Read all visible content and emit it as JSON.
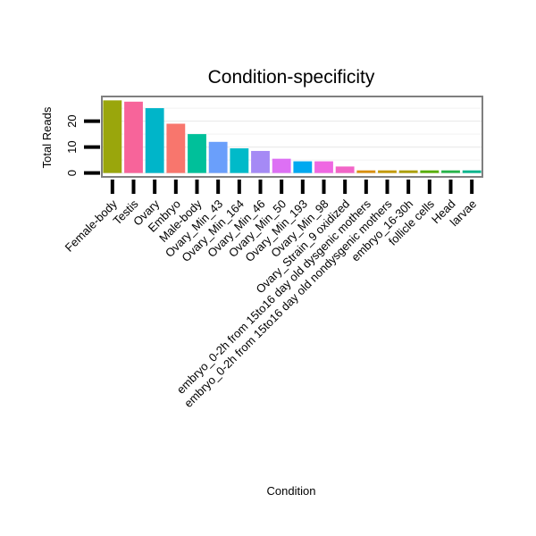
{
  "chart_data": {
    "type": "bar",
    "title": "Condition-specificity",
    "xlabel": "Condition",
    "ylabel": "Total Reads",
    "categories": [
      "Female-body",
      "Testis",
      "Ovary",
      "Embryo",
      "Male-body",
      "Ovary_Min_43",
      "Ovary_Min_164",
      "Ovary_Min_46",
      "Ovary_Min_50",
      "Ovary_Min_193",
      "Ovary_Min_98",
      "Ovary_Strain_9 oxidized",
      "embryo_0-2h from 15to16 day old dysgenic mothers",
      "embryo_0-2h from 15to16 day old nondysgenic mothers",
      "embryo_16-30h",
      "follicle cells",
      "Head",
      "larvae"
    ],
    "values": [
      28,
      27.5,
      25,
      19,
      15,
      12,
      9.5,
      8.5,
      5.5,
      4.5,
      4.5,
      2.5,
      1,
      1,
      1,
      1,
      1,
      1
    ],
    "colors": [
      "#9aa60c",
      "#f7649a",
      "#00b5c9",
      "#f8766d",
      "#00c09a",
      "#6a9ffb",
      "#00bac9",
      "#a58af5",
      "#dd70f4",
      "#00a9f0",
      "#ef67e2",
      "#f265c7",
      "#d89010",
      "#c39a00",
      "#ac9f00",
      "#58ae00",
      "#28b44b",
      "#00b58c"
    ],
    "yticks": [
      0,
      10,
      20
    ],
    "ylim": [
      -1.5,
      29.5
    ],
    "grid": true,
    "legend": "none"
  }
}
